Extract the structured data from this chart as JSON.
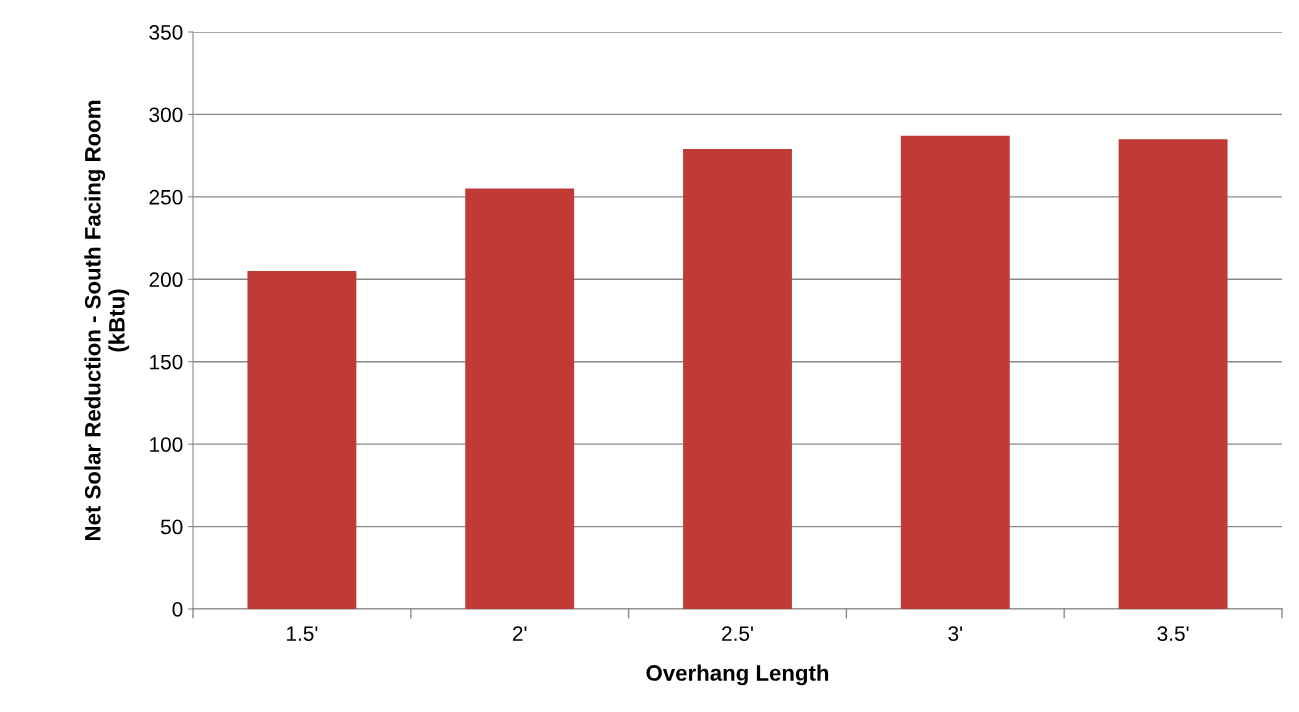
{
  "chart_data": {
    "type": "bar",
    "xlabel": "Overhang Length",
    "ylabel": "Net Solar Reduction - South Facing Room\n(kBtu)",
    "categories": [
      "1.5'",
      "2'",
      "2.5'",
      "3'",
      "3.5'"
    ],
    "values": [
      205,
      255,
      279,
      287,
      285
    ],
    "color": "#c03a36",
    "ylim": [
      0,
      350
    ],
    "yticks": [
      0,
      50,
      100,
      150,
      200,
      250,
      300,
      350
    ],
    "grid": "y",
    "legend": false
  }
}
